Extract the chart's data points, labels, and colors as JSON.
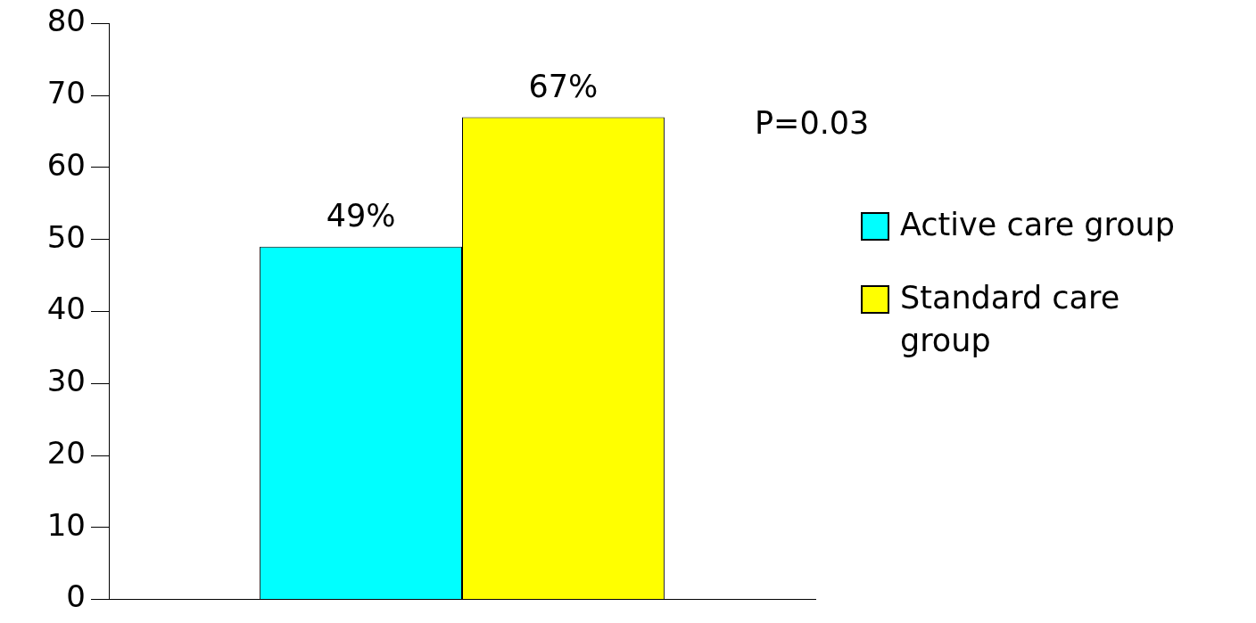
{
  "chart_data": {
    "type": "bar",
    "categories": [
      null
    ],
    "series": [
      {
        "name": "Active care group",
        "color": "#00ffff",
        "values": [
          49
        ],
        "value_labels": [
          "49%"
        ]
      },
      {
        "name": "Standard care group",
        "color": "#ffff00",
        "values": [
          67
        ],
        "value_labels": [
          "67%"
        ]
      }
    ],
    "ylim": [
      0,
      80
    ],
    "yticks": [
      0,
      10,
      20,
      30,
      40,
      50,
      60,
      70,
      80
    ],
    "grid": false,
    "legend": "right",
    "tick_labels": "y",
    "annotations": [
      "P=0.03"
    ]
  }
}
